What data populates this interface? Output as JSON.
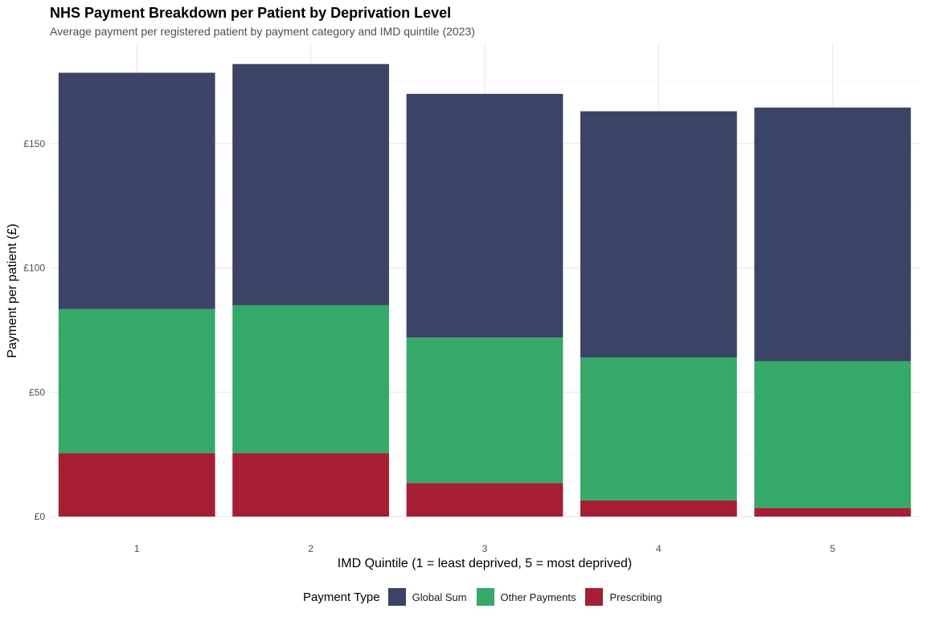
{
  "chart_data": {
    "type": "bar",
    "stacked": true,
    "title": "NHS Payment Breakdown per Patient by Deprivation Level",
    "subtitle": "Average payment per registered patient by payment category and IMD quintile (2023)",
    "xlabel": "IMD Quintile (1 = least deprived, 5 = most deprived)",
    "ylabel": "Payment per patient (£)",
    "categories": [
      "1",
      "2",
      "3",
      "4",
      "5"
    ],
    "ylim": [
      0,
      185
    ],
    "yticks": [
      0,
      50,
      100,
      150
    ],
    "ytick_labels": [
      "£0",
      "£50",
      "£100",
      "£150"
    ],
    "grid": true,
    "legend_title": "Payment Type",
    "legend_position": "bottom",
    "series": [
      {
        "name": "Global Sum",
        "color": "#3B4466",
        "values": [
          95,
          97,
          98,
          99,
          102
        ]
      },
      {
        "name": "Other Payments",
        "color": "#35A96A",
        "values": [
          58,
          59.5,
          58.5,
          57.5,
          59
        ]
      },
      {
        "name": "Prescribing",
        "color": "#A61E35",
        "values": [
          25.5,
          25.5,
          13.5,
          6.5,
          3.5
        ]
      }
    ],
    "stack_order_bottom_to_top": [
      "Prescribing",
      "Other Payments",
      "Global Sum"
    ]
  }
}
